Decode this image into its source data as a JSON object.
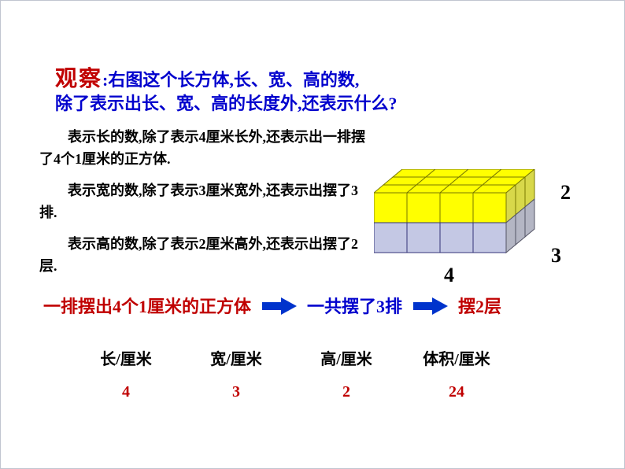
{
  "observe": {
    "label": "观察",
    "line1": ":右图这个长方体,长、宽、高的数,",
    "line2": "除了表示出长、宽、高的长度外,还表示什么?"
  },
  "paragraphs": {
    "p1": "　　表示长的数,除了表示4厘米长外,还表示出一排摆了4个1厘米的正方体.",
    "p2": "　　表示宽的数,除了表示3厘米宽外,还表示出摆了3排.",
    "p3": "　　表示高的数,除了表示2厘米高外,还表示出摆了2层."
  },
  "cube": {
    "cols": 4,
    "rows": 3,
    "layers": 2,
    "unit": 42,
    "depth_dx": 12,
    "depth_dy": 10,
    "top_fill": "#ffff00",
    "top_stroke": "#7a7a00",
    "front_fill": "#c4c8e4",
    "front_stroke": "#333377",
    "side_fill": "#b4b6c4",
    "side_stroke": "#555566"
  },
  "dimensions": {
    "length": "4",
    "width": "3",
    "height": "2"
  },
  "summary": {
    "part1": "一排摆出4个1厘米的正方体",
    "part2": "一共摆了3排",
    "part3": "摆2层",
    "arrow_fill": "#0033cc"
  },
  "table": {
    "headers": [
      "长/厘米",
      "宽/厘米",
      "高/厘米",
      "体积/厘米"
    ],
    "values": [
      "4",
      "3",
      "2",
      "24"
    ]
  },
  "colors": {
    "red": "#c00000",
    "blue": "#0000cd"
  }
}
